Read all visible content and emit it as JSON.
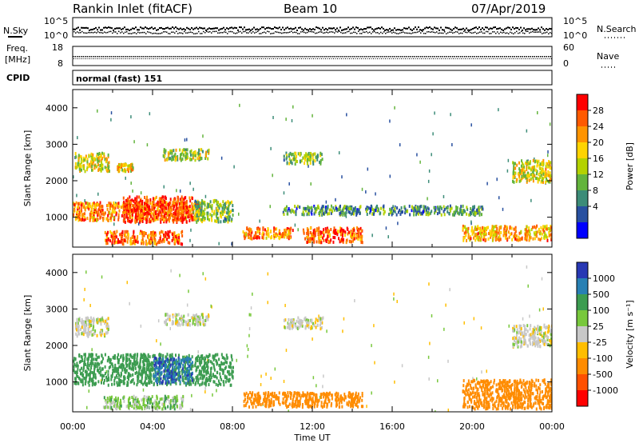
{
  "header": {
    "station": "Rankin Inlet (fitACF)",
    "beam": "Beam 10",
    "date": "07/Apr/2019"
  },
  "top_panels": {
    "nsky_label": "N.Sky",
    "nsearch_label": "N.Search",
    "noise_ticks_left": [
      "10^5",
      "10^0"
    ],
    "noise_ticks_right": [
      "10^5",
      "10^0"
    ],
    "freq_label_1": "Freq.",
    "freq_label_2": "[MHz]",
    "freq_ticks": [
      "18",
      "8"
    ],
    "nave_label": "Nave",
    "nave_ticks": [
      "60",
      "0"
    ],
    "cpid_label": "CPID",
    "cpid_value": "normal (fast) 151"
  },
  "colorbars": {
    "power": {
      "label": "Power [dB]",
      "ticks": [
        "28",
        "24",
        "20",
        "16",
        "12",
        "8",
        "4"
      ],
      "colors": [
        "#ff0000",
        "#ff5a00",
        "#ff9400",
        "#ffd400",
        "#b4d200",
        "#63b43c",
        "#3c8c78",
        "#2850a0",
        "#0000ff"
      ]
    },
    "velocity": {
      "label": "Velocity [m s⁻¹]",
      "ticks": [
        "1000",
        "500",
        "100",
        "25",
        "-25",
        "-100",
        "-500",
        "-1000"
      ],
      "colors": [
        "#2838b4",
        "#2880b4",
        "#3c9c50",
        "#78c83c",
        "#c8c8c8",
        "#ffbe00",
        "#ff8c00",
        "#ff5000",
        "#ff0000"
      ]
    }
  },
  "axes": {
    "slant_range_label": "Slant Range [km]",
    "range_ticks": [
      "4000",
      "3000",
      "2000",
      "1000"
    ],
    "time_label": "Time UT",
    "time_ticks": [
      "00:00",
      "04:00",
      "08:00",
      "12:00",
      "16:00",
      "20:00",
      "00:00"
    ]
  },
  "chart_data": [
    {
      "type": "heatmap",
      "title": "Power [dB]",
      "xlabel": "Time UT",
      "ylabel": "Slant Range [km]",
      "x_range_hours": [
        0,
        24
      ],
      "y_range_km": [
        180,
        4500
      ],
      "color_range_db": [
        0,
        32
      ],
      "blobs": [
        {
          "t": [
            0.1,
            1.8
          ],
          "r": [
            2300,
            2800
          ],
          "power": 18
        },
        {
          "t": [
            2.2,
            3.0
          ],
          "r": [
            2300,
            2500
          ],
          "power": 20
        },
        {
          "t": [
            4.5,
            6.8
          ],
          "r": [
            2600,
            2900
          ],
          "power": 16
        },
        {
          "t": [
            0.0,
            6.5
          ],
          "r": [
            950,
            1450
          ],
          "power": 24
        },
        {
          "t": [
            2.5,
            6.0
          ],
          "r": [
            900,
            1600
          ],
          "power": 28
        },
        {
          "t": [
            6.0,
            8.0
          ],
          "r": [
            900,
            1500
          ],
          "power": 14
        },
        {
          "t": [
            1.5,
            5.5
          ],
          "r": [
            300,
            650
          ],
          "power": 26
        },
        {
          "t": [
            8.5,
            11.0
          ],
          "r": [
            450,
            750
          ],
          "power": 24
        },
        {
          "t": [
            11.5,
            14.5
          ],
          "r": [
            350,
            750
          ],
          "power": 26
        },
        {
          "t": [
            10.5,
            12.5
          ],
          "r": [
            2500,
            2800
          ],
          "power": 14
        },
        {
          "t": [
            10.5,
            20.5
          ],
          "r": [
            1100,
            1350
          ],
          "power": 10
        },
        {
          "t": [
            19.5,
            24.0
          ],
          "r": [
            400,
            800
          ],
          "power": 22
        },
        {
          "t": [
            22.0,
            24.0
          ],
          "r": [
            2000,
            2600
          ],
          "power": 18
        }
      ]
    },
    {
      "type": "heatmap",
      "title": "Velocity [m s⁻¹]",
      "xlabel": "Time UT",
      "ylabel": "Slant Range [km]",
      "x_range_hours": [
        0,
        24
      ],
      "y_range_km": [
        180,
        4500
      ],
      "color_range_ms": [
        -1000,
        1000
      ],
      "blobs": [
        {
          "t": [
            0.1,
            1.8
          ],
          "r": [
            2300,
            2800
          ],
          "velocity": 0
        },
        {
          "t": [
            4.5,
            6.8
          ],
          "r": [
            2600,
            2900
          ],
          "velocity": 0
        },
        {
          "t": [
            0.0,
            8.0
          ],
          "r": [
            950,
            1800
          ],
          "velocity": 300
        },
        {
          "t": [
            4.0,
            6.0
          ],
          "r": [
            1000,
            1700
          ],
          "velocity": 800
        },
        {
          "t": [
            1.5,
            5.5
          ],
          "r": [
            300,
            650
          ],
          "velocity": 60
        },
        {
          "t": [
            8.5,
            14.5
          ],
          "r": [
            350,
            750
          ],
          "velocity": -300
        },
        {
          "t": [
            10.5,
            12.5
          ],
          "r": [
            2500,
            2800
          ],
          "velocity": 0
        },
        {
          "t": [
            19.5,
            24.0
          ],
          "r": [
            300,
            1100
          ],
          "velocity": -300
        },
        {
          "t": [
            22.0,
            24.0
          ],
          "r": [
            2000,
            2600
          ],
          "velocity": 0
        }
      ]
    }
  ]
}
